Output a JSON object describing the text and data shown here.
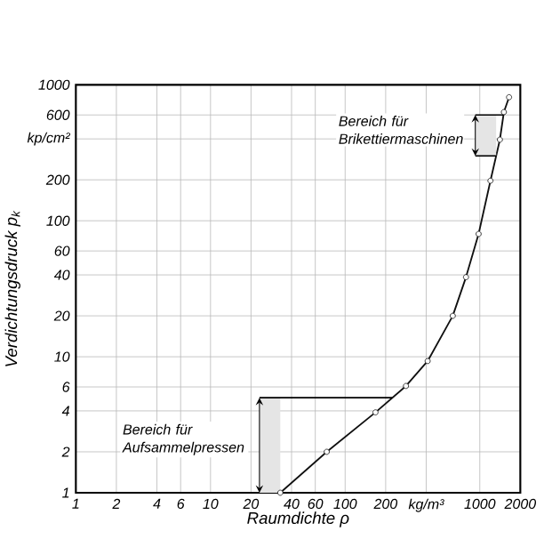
{
  "chart_data": {
    "type": "line",
    "xlabel": "Raumdichte ρ",
    "ylabel": "Verdichtungsdruck p$_{k}$",
    "log": "xy",
    "grid": true,
    "marker": "circle",
    "xlim": [
      1,
      2000
    ],
    "ylim": [
      1,
      1000
    ],
    "xticks": [
      1,
      2,
      4,
      6,
      10,
      20,
      40,
      60,
      100,
      200,
      {
        "value": 400,
        "label": "kg/m³"
      },
      1000,
      2000
    ],
    "yticks": [
      1,
      2,
      4,
      6,
      10,
      20,
      40,
      60,
      100,
      200,
      {
        "value": 400,
        "label": "kp/cm²"
      },
      600,
      1000
    ],
    "series": [
      {
        "color": "#111111",
        "x": [
          33,
          73,
          168,
          283,
          410,
          630,
          790,
          980,
          1200,
          1410,
          1510,
          1650
        ],
        "values": [
          1,
          2,
          3.9,
          6.1,
          9.3,
          20,
          38.5,
          80,
          197,
          395,
          630,
          810
        ]
      }
    ],
    "bands": [
      {
        "axis": "y",
        "from": 1,
        "to": 5,
        "label": "Bereich für Aufsammelpressen"
      },
      {
        "axis": "y",
        "from": 300,
        "to": 600,
        "label": "Bereich für Brikettiermaschinen"
      }
    ]
  }
}
